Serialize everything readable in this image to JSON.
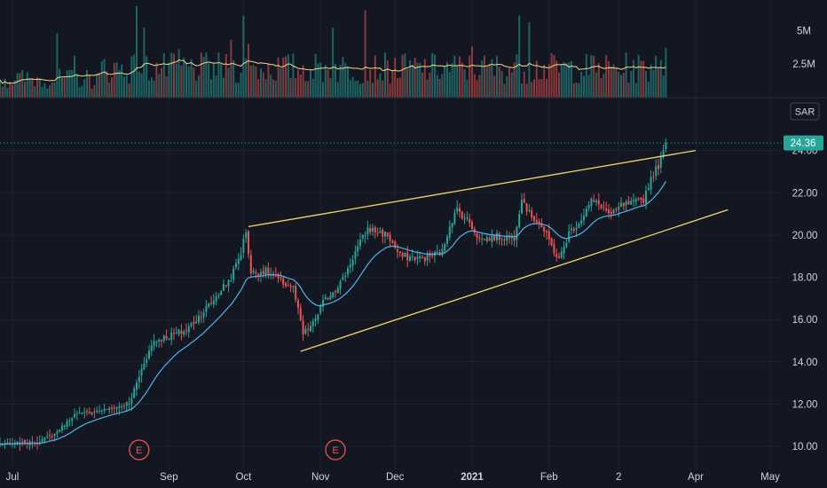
{
  "chart_data": {
    "type": "candlestick",
    "currency": "SAR",
    "last_price_label": "24.36",
    "last_price": 24.36,
    "price_axis": {
      "ticks": [
        "10.00",
        "12.00",
        "14.00",
        "16.00",
        "18.00",
        "20.00",
        "22.00",
        "24.00"
      ],
      "tick_values": [
        10,
        12,
        14,
        16,
        18,
        20,
        22,
        24
      ],
      "range": [
        9.0,
        26.0
      ]
    },
    "volume_axis": {
      "ticks": [
        "2.5M",
        "5M"
      ],
      "tick_values": [
        2.5,
        5
      ],
      "range": [
        0,
        7.0
      ]
    },
    "time_axis": {
      "labels": [
        {
          "text": "Jul",
          "day": 5,
          "bold": false
        },
        {
          "text": "Sep",
          "day": 68,
          "bold": false
        },
        {
          "text": "Oct",
          "day": 98,
          "bold": false
        },
        {
          "text": "Nov",
          "day": 129,
          "bold": false
        },
        {
          "text": "Dec",
          "day": 159,
          "bold": false
        },
        {
          "text": "2021",
          "day": 190,
          "bold": true
        },
        {
          "text": "Feb",
          "day": 221,
          "bold": false
        },
        {
          "text": "2",
          "day": 249,
          "bold": false
        },
        {
          "text": "Apr",
          "day": 280,
          "bold": false
        },
        {
          "text": "May",
          "day": 310,
          "bold": false
        }
      ]
    },
    "earnings_markers": [
      {
        "label": "E",
        "day": 56
      },
      {
        "label": "E",
        "day": 135
      }
    ],
    "trendlines": [
      {
        "name": "upper",
        "from": [
          100,
          20.4
        ],
        "to": [
          280,
          24.0
        ]
      },
      {
        "name": "lower",
        "from": [
          121,
          14.5
        ],
        "to": [
          293,
          21.2
        ]
      }
    ],
    "price_anchors": [
      [
        0,
        10.1
      ],
      [
        15,
        10.2
      ],
      [
        22,
        10.6
      ],
      [
        30,
        11.5
      ],
      [
        45,
        11.8
      ],
      [
        52,
        12.0
      ],
      [
        58,
        14.0
      ],
      [
        62,
        15.0
      ],
      [
        75,
        15.5
      ],
      [
        85,
        16.8
      ],
      [
        93,
        18.0
      ],
      [
        97,
        19.2
      ],
      [
        99,
        20.2
      ],
      [
        101,
        18.2
      ],
      [
        107,
        18.3
      ],
      [
        113,
        17.8
      ],
      [
        118,
        17.5
      ],
      [
        122,
        15.3
      ],
      [
        126,
        15.8
      ],
      [
        130,
        16.8
      ],
      [
        138,
        17.9
      ],
      [
        143,
        19.2
      ],
      [
        148,
        20.3
      ],
      [
        156,
        20.0
      ],
      [
        161,
        19.0
      ],
      [
        170,
        18.9
      ],
      [
        178,
        19.2
      ],
      [
        181,
        20.5
      ],
      [
        184,
        21.2
      ],
      [
        189,
        20.6
      ],
      [
        193,
        19.8
      ],
      [
        200,
        19.9
      ],
      [
        207,
        19.9
      ],
      [
        210,
        21.8
      ],
      [
        213,
        21.0
      ],
      [
        217,
        20.6
      ],
      [
        222,
        19.5
      ],
      [
        225,
        18.8
      ],
      [
        229,
        20.1
      ],
      [
        233,
        20.6
      ],
      [
        238,
        21.6
      ],
      [
        242,
        21.4
      ],
      [
        246,
        20.9
      ],
      [
        250,
        21.4
      ],
      [
        255,
        21.5
      ],
      [
        259,
        21.7
      ],
      [
        262,
        22.7
      ],
      [
        265,
        23.3
      ],
      [
        268,
        24.2
      ]
    ],
    "volume_baseline": 1.2,
    "volume_spikes": [
      [
        23,
        4.8
      ],
      [
        30,
        3.1
      ],
      [
        55,
        6.8
      ],
      [
        58,
        5.2
      ],
      [
        72,
        3.6
      ],
      [
        93,
        4.3
      ],
      [
        98,
        6.1
      ],
      [
        100,
        4.0
      ],
      [
        134,
        5.2
      ],
      [
        147,
        6.5
      ],
      [
        190,
        3.8
      ],
      [
        209,
        6.1
      ],
      [
        213,
        5.6
      ],
      [
        264,
        3.1
      ],
      [
        266,
        2.8
      ],
      [
        268,
        3.7
      ]
    ]
  }
}
